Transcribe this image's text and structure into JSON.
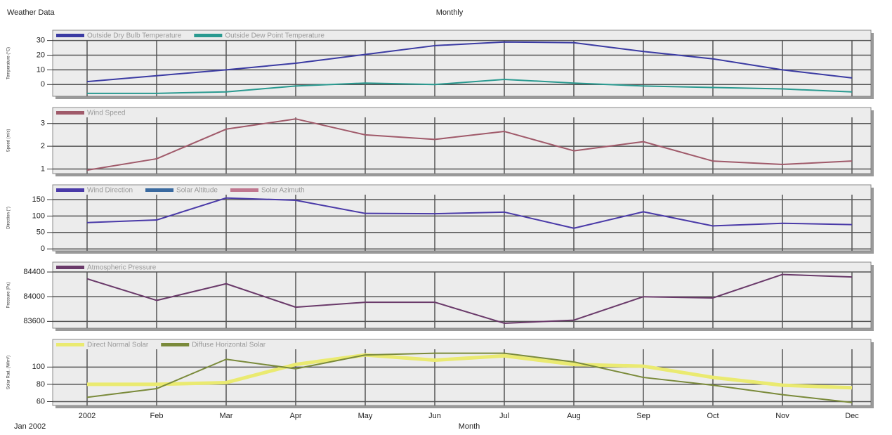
{
  "header": {
    "title": "Weather Data",
    "period": "Monthly"
  },
  "footer": {
    "start": "Jan 2002",
    "x_label": "Month"
  },
  "chart_data": [
    {
      "type": "line",
      "y_label": "Temperature (°C)",
      "ylim": [
        -8,
        37
      ],
      "yticks": [
        0,
        10,
        20,
        30
      ],
      "grid": true,
      "series": [
        {
          "name": "Outside Dry Bulb Temperature",
          "color": "#3b3ba3",
          "values": [
            2,
            6,
            10,
            14.5,
            20.5,
            26.5,
            29,
            28.5,
            22.5,
            17.5,
            10,
            4.5
          ]
        },
        {
          "name": "Outside Dew Point Temperature",
          "color": "#2a9a90",
          "values": [
            -6,
            -6,
            -5,
            -1,
            1,
            0,
            3.5,
            1,
            -1,
            -2,
            -3,
            -5
          ]
        }
      ]
    },
    {
      "type": "line",
      "y_label": "Speed (m/s)",
      "ylim": [
        0.8,
        3.7
      ],
      "yticks": [
        1,
        2,
        3
      ],
      "grid": true,
      "series": [
        {
          "name": "Wind Speed",
          "color": "#a05a6a",
          "values": [
            0.95,
            1.45,
            2.75,
            3.2,
            2.5,
            2.3,
            2.65,
            1.8,
            2.2,
            1.35,
            1.2,
            1.35
          ]
        }
      ]
    },
    {
      "type": "line",
      "y_label": "Direction (°)",
      "ylim": [
        -6,
        195
      ],
      "yticks": [
        0,
        50,
        100,
        150
      ],
      "grid": true,
      "series": [
        {
          "name": "Wind Direction",
          "color": "#4a3aa8",
          "values": [
            80,
            88,
            155,
            148,
            108,
            107,
            112,
            63,
            113,
            70,
            78,
            74
          ]
        },
        {
          "name": "Solar Altitude",
          "color": "#3a6aa0",
          "values": [
            null,
            null,
            null,
            null,
            null,
            null,
            null,
            null,
            null,
            null,
            null,
            null
          ]
        },
        {
          "name": "Solar Azimuth",
          "color": "#c07890",
          "values": [
            null,
            null,
            null,
            null,
            null,
            null,
            null,
            null,
            null,
            null,
            null,
            null
          ]
        }
      ]
    },
    {
      "type": "line",
      "y_label": "Pressure (Pa)",
      "ylim": [
        83490,
        84560
      ],
      "yticks": [
        83600,
        84000,
        84400
      ],
      "grid": true,
      "series": [
        {
          "name": "Atmospheric Pressure",
          "color": "#6a3a6a",
          "values": [
            84290,
            83940,
            84210,
            83830,
            83910,
            83910,
            83570,
            83620,
            84000,
            83980,
            84360,
            84320
          ]
        }
      ]
    },
    {
      "type": "line",
      "y_label": "Solar Rad. (W/m²)",
      "ylim": [
        55.5,
        132
      ],
      "yticks": [
        60,
        80,
        100
      ],
      "grid": true,
      "categories": [
        "2002",
        "Feb",
        "Mar",
        "Apr",
        "May",
        "Jun",
        "Jul",
        "Aug",
        "Sep",
        "Oct",
        "Nov",
        "Dec"
      ],
      "series": [
        {
          "name": "Direct Normal Solar",
          "color": "#eaea70",
          "values": [
            80,
            80,
            82,
            103,
            114,
            108,
            113,
            103,
            101,
            88,
            79,
            76
          ]
        },
        {
          "name": "Diffuse Horizontal Solar",
          "color": "#7a8a3a",
          "values": [
            65,
            75,
            109,
            98,
            114,
            116,
            116,
            106,
            88,
            79,
            68,
            59
          ]
        }
      ]
    }
  ]
}
